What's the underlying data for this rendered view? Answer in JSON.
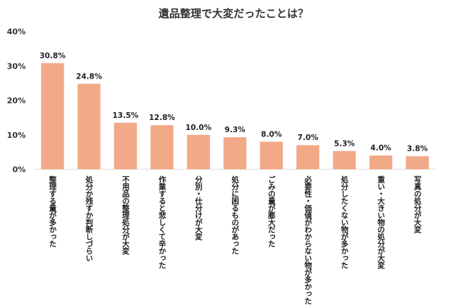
{
  "chart_data": {
    "type": "bar",
    "title": "遺品整理で大変だったことは？",
    "categories": [
      "整理する量が多かった",
      "処分か残すか判断しづらい",
      "不用品の整理処分が大変",
      "作業すると悲しくて辛かった",
      "分別・仕分けが大変",
      "処分に困るものがあった",
      "ごみの量が膨大だった",
      "必要性・価値がわからない物が多かった",
      "処分したくない物が多かった",
      "重い・大きい物の処分が大変",
      "写真の処分が大変"
    ],
    "values": [
      30.8,
      24.8,
      13.5,
      12.8,
      10.0,
      9.3,
      8.0,
      7.0,
      5.3,
      4.0,
      3.8
    ],
    "value_labels": [
      "30.8%",
      "24.8%",
      "13.5%",
      "12.8%",
      "10.0%",
      "9.3%",
      "8.0%",
      "7.0%",
      "5.3%",
      "4.0%",
      "3.8%"
    ],
    "yticks": [
      0,
      10,
      20,
      30,
      40
    ],
    "ytick_labels": [
      "0%",
      "10%",
      "20%",
      "30%",
      "40%"
    ],
    "ylim": [
      0,
      40
    ],
    "xlabel": "",
    "ylabel": "",
    "grid": false,
    "bar_color": "#F2A987",
    "axis_color": "#D9D9D9"
  }
}
